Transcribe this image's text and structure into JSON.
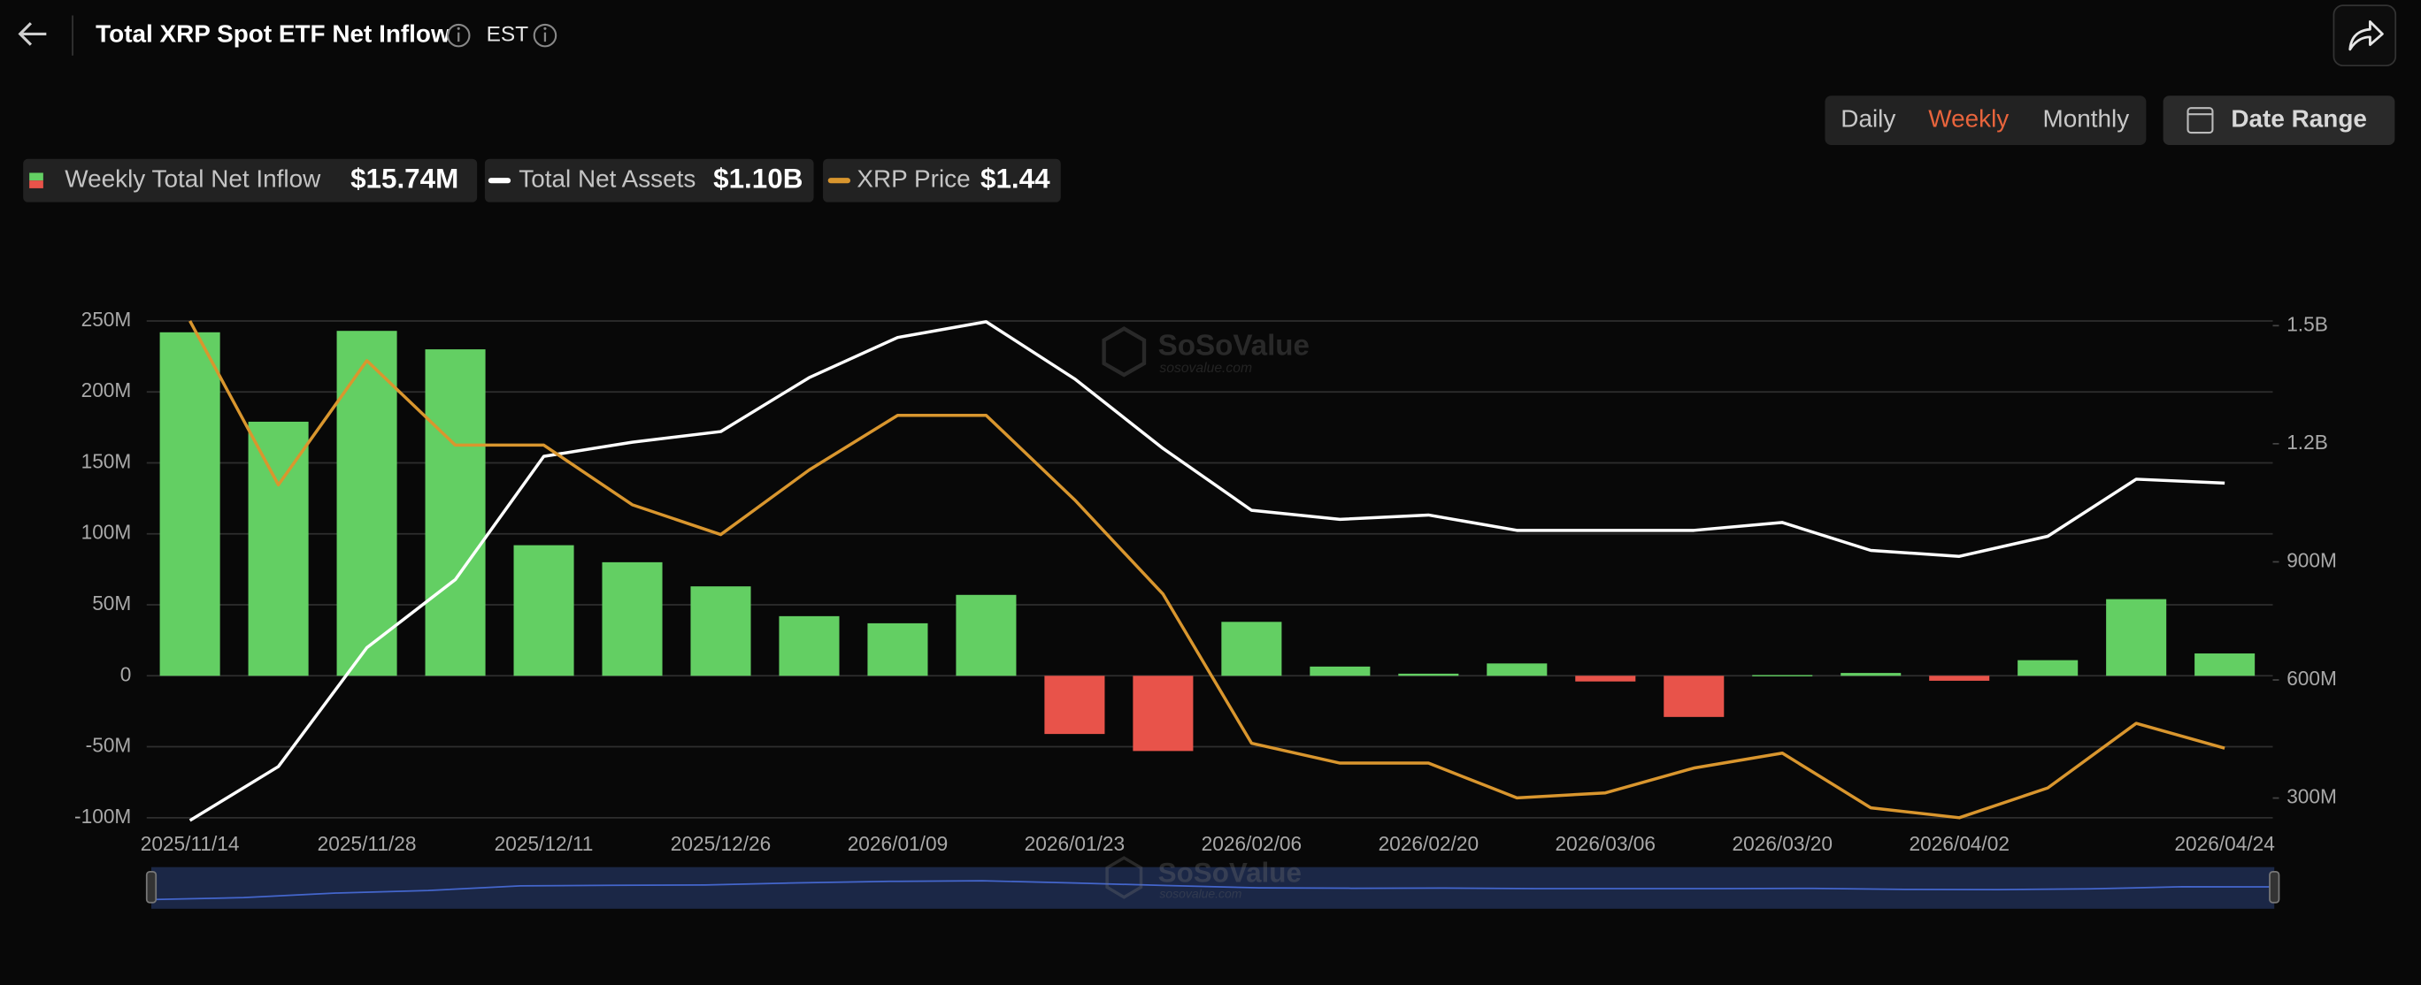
{
  "header": {
    "title": "Total XRP Spot ETF Net Inflow",
    "timezone": "EST"
  },
  "controls": {
    "periods": [
      "Daily",
      "Weekly",
      "Monthly"
    ],
    "active_period": 1,
    "date_range": "Date Range"
  },
  "watermark": {
    "brand": "SoSoValue",
    "site": "sosovalue.com"
  },
  "chart_data": {
    "type": "bar",
    "categories": [
      "2025/11/14",
      null,
      "2025/11/28",
      null,
      "2025/12/11",
      null,
      "2025/12/26",
      null,
      "2026/01/09",
      null,
      "2026/01/23",
      null,
      "2026/02/06",
      null,
      "2026/02/20",
      null,
      "2026/03/06",
      null,
      "2026/03/20",
      null,
      "2026/04/02",
      null,
      null,
      "2026/04/24"
    ],
    "series": [
      {
        "name": "Weekly Total Net Inflow",
        "type": "bar",
        "axis": "y",
        "color": "#63cf63",
        "negative_color": "#e8534a",
        "latest_label": "$15.74M",
        "values": [
          242,
          179,
          243,
          230,
          92,
          80,
          63,
          42,
          37,
          57,
          -41,
          -53,
          38,
          6.5,
          1.5,
          8.7,
          -4,
          -29,
          0.5,
          2,
          -3.5,
          11,
          54,
          15.74
        ]
      },
      {
        "name": "Total Net Assets",
        "type": "line",
        "axis": "y2",
        "color": "#ffffff",
        "latest_label": "$1.10B",
        "values": [
          243,
          380,
          682,
          855,
          1168,
          1204,
          1231,
          1368,
          1470,
          1510,
          1365,
          1188,
          1031,
          1008,
          1019,
          980,
          980,
          980,
          1000,
          929,
          914,
          965,
          1110,
          1100
        ]
      },
      {
        "name": "XRP Price",
        "type": "line",
        "axis": "y3",
        "color": "#d9962e",
        "latest_label": "$1.44",
        "values": [
          2.3,
          1.97,
          2.22,
          2.05,
          2.05,
          1.93,
          1.87,
          2.0,
          2.11,
          2.11,
          1.94,
          1.75,
          1.45,
          1.41,
          1.41,
          1.34,
          1.35,
          1.4,
          1.43,
          1.32,
          1.3,
          1.36,
          1.49,
          1.44
        ]
      }
    ],
    "ylim": [
      -100,
      250
    ],
    "yticks": [
      {
        "value": -100,
        "label": "-100M"
      },
      {
        "value": -50,
        "label": "-50M"
      },
      0,
      {
        "value": 50,
        "label": "50M"
      },
      {
        "value": 100,
        "label": "100M"
      },
      {
        "value": 150,
        "label": "150M"
      },
      {
        "value": 200,
        "label": "200M"
      },
      {
        "value": 250,
        "label": "250M"
      }
    ],
    "y2lim": [
      250,
      1512
    ],
    "y2ticks": [
      {
        "value": 300,
        "label": "300M"
      },
      {
        "value": 600,
        "label": "600M"
      },
      {
        "value": 900,
        "label": "900M"
      },
      {
        "value": 1200,
        "label": "1.2B"
      },
      {
        "value": 1500,
        "label": "1.5B"
      }
    ],
    "y3lim": [
      1.3,
      2.3
    ],
    "grid": true,
    "navigator": true
  }
}
